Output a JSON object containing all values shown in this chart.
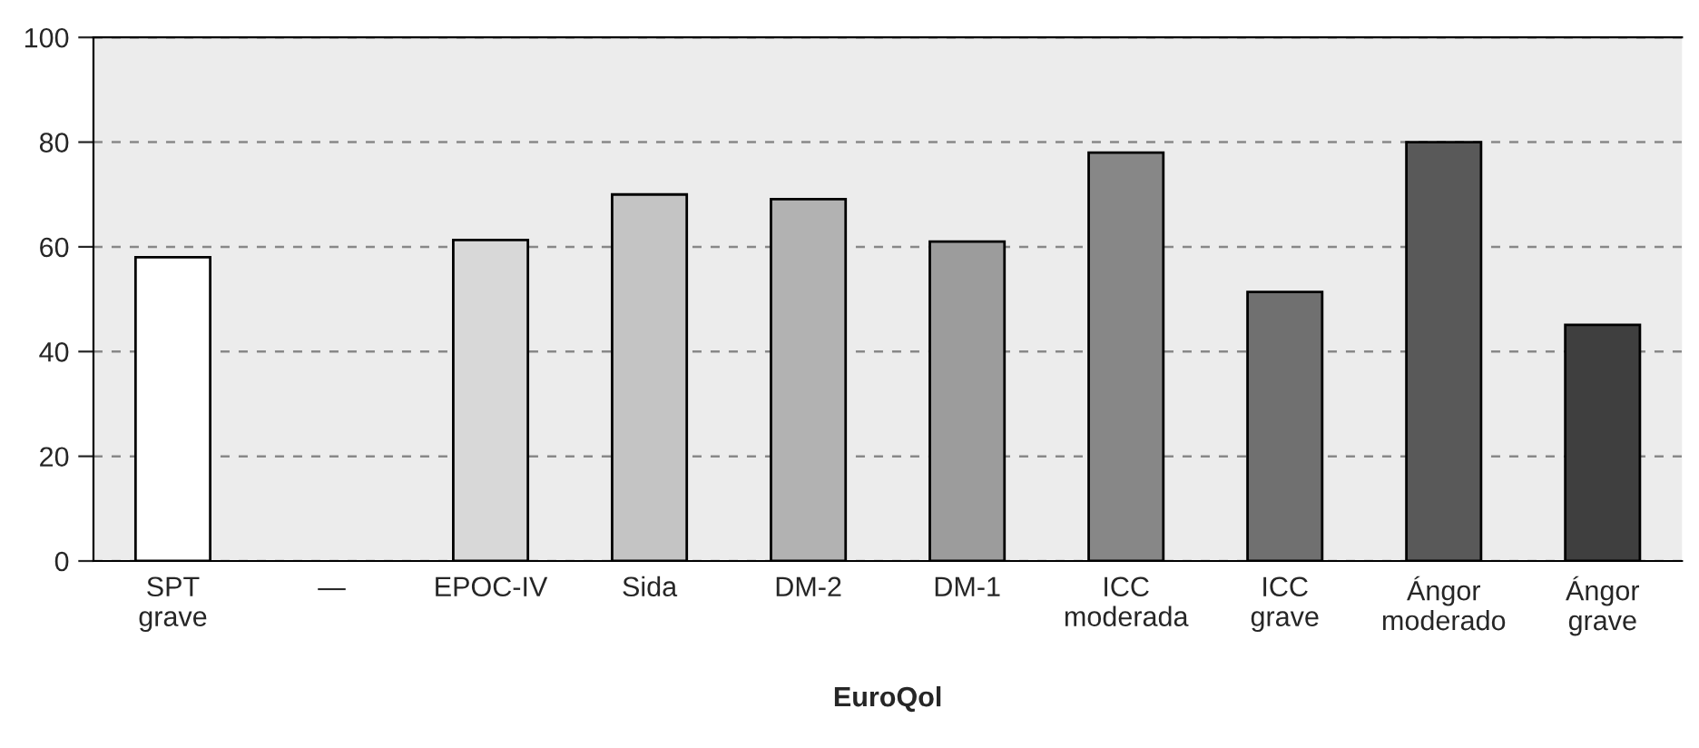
{
  "chart_data": {
    "type": "bar",
    "xlabel": "EuroQol",
    "categories": [
      "SPT\ngrave",
      "—",
      "EPOC-IV",
      "Sida",
      "DM-2",
      "DM-1",
      "ICC\nmoderada",
      "ICC\ngrave",
      "Ángor\nmoderado",
      "Ángor\ngrave"
    ],
    "values": [
      58,
      null,
      61.3,
      70,
      69.1,
      61,
      78,
      51.4,
      80,
      45.1
    ],
    "colors": [
      "#ffffff",
      "#e0e0e0",
      "#d8d8d8",
      "#c4c4c4",
      "#b2b2b2",
      "#9c9c9c",
      "#878787",
      "#707070",
      "#595959",
      "#3f3f3f"
    ],
    "ylim": [
      0,
      100
    ],
    "yticks": [
      0,
      20,
      40,
      60,
      80,
      100
    ],
    "grid": "y",
    "legend": false
  }
}
